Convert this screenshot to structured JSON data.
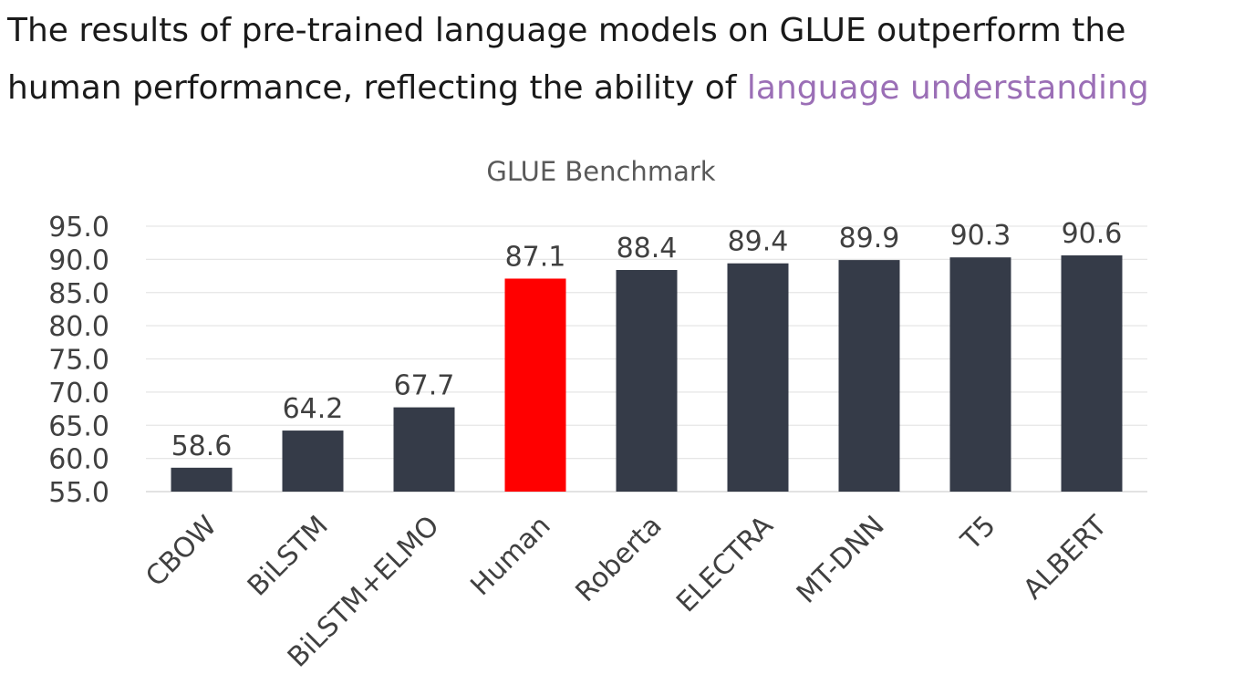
{
  "slide": {
    "title_line1": "The results of pre-trained language models on GLUE outperform the",
    "title_line2_prefix": "human performance, reflecting the ability of ",
    "title_line2_highlight": "language understanding"
  },
  "colors": {
    "bar_default": "#353b48",
    "bar_highlight": "#ff0000",
    "title_highlight": "#9b6fb6"
  },
  "chart_data": {
    "type": "bar",
    "title": "GLUE Benchmark",
    "categories": [
      "CBOW",
      "BiLSTM",
      "BiLSTM+ELMO",
      "Human",
      "Roberta",
      "ELECTRA",
      "MT-DNN",
      "T5",
      "ALBERT"
    ],
    "values": [
      58.6,
      64.2,
      67.7,
      87.1,
      88.4,
      89.4,
      89.9,
      90.3,
      90.6
    ],
    "data_labels": [
      "58.6",
      "64.2",
      "67.7",
      "87.1",
      "88.4",
      "89.4",
      "89.9",
      "90.3",
      "90.6"
    ],
    "highlight_category": "Human",
    "xlabel": "",
    "ylabel": "",
    "ylim": [
      55,
      95
    ],
    "yticks": [
      55,
      60,
      65,
      70,
      75,
      80,
      85,
      90,
      95
    ],
    "ytick_labels": [
      "55.0",
      "60.0",
      "65.0",
      "70.0",
      "75.0",
      "80.0",
      "85.0",
      "90.0",
      "95.0"
    ],
    "grid": true,
    "legend": "none"
  }
}
